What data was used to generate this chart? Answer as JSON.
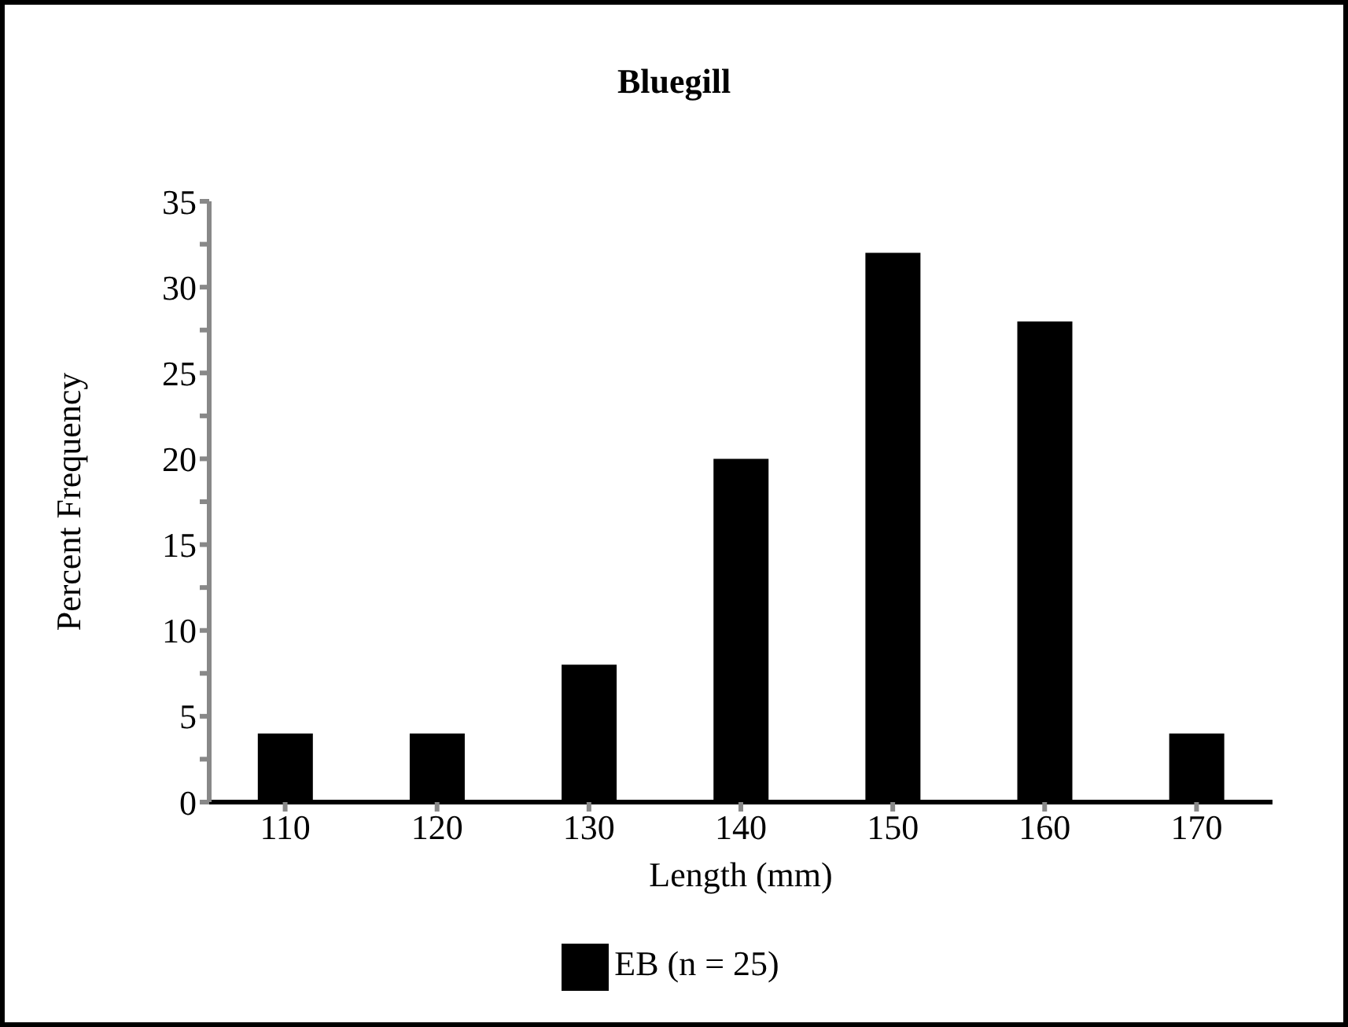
{
  "chart_data": {
    "type": "bar",
    "title": "Bluegill",
    "xlabel": "Length (mm)",
    "ylabel": "Percent Frequency",
    "categories": [
      "110",
      "120",
      "130",
      "140",
      "150",
      "160",
      "170"
    ],
    "series": [
      {
        "name": "EB (n = 25)",
        "color": "#000000",
        "values": [
          4,
          4,
          8,
          20,
          32,
          28,
          4
        ]
      }
    ],
    "ylim": [
      0,
      35
    ],
    "yticks": [
      0,
      {
        "value": 2.5,
        "label": null
      },
      5,
      {
        "value": 7.5,
        "label": null
      },
      10,
      {
        "value": 12.5,
        "label": null
      },
      15,
      {
        "value": 17.5,
        "label": null
      },
      20,
      {
        "value": 22.5,
        "label": null
      },
      25,
      {
        "value": 27.5,
        "label": null
      },
      30,
      {
        "value": 32.5,
        "label": null
      },
      35
    ],
    "grid": false,
    "legend": "bottom"
  }
}
